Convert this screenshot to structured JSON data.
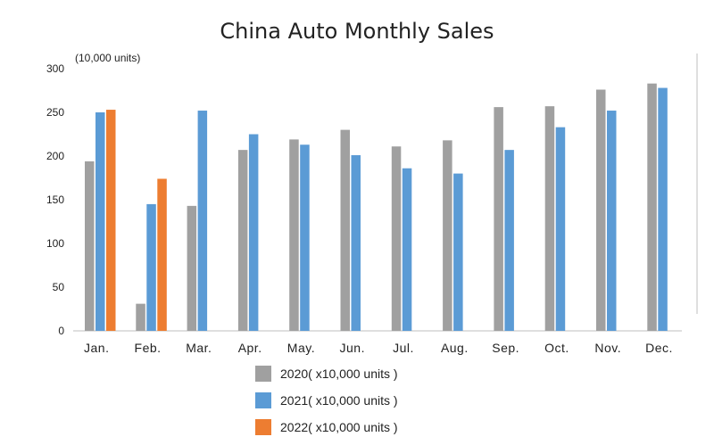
{
  "chart_data": {
    "type": "bar",
    "title": "China Auto Monthly Sales",
    "unit_label": "(10,000 units)",
    "categories": [
      "Jan.",
      "Feb.",
      "Mar.",
      "Apr.",
      "May.",
      "Jun.",
      "Jul.",
      "Aug.",
      "Sep.",
      "Oct.",
      "Nov.",
      "Dec."
    ],
    "ylim": [
      0,
      300
    ],
    "yticks": [
      0,
      50,
      100,
      150,
      200,
      250,
      300
    ],
    "grid": false,
    "legend_position": "bottom",
    "series": [
      {
        "name": "2020( x10,000 units )",
        "color": "#a0a0a0",
        "values": [
          194,
          31,
          143,
          207,
          219,
          230,
          211,
          218,
          256,
          257,
          276,
          283
        ]
      },
      {
        "name": "2021( x10,000 units )",
        "color": "#5b9bd5",
        "values": [
          250,
          145,
          252,
          225,
          213,
          201,
          186,
          180,
          207,
          233,
          252,
          278
        ]
      },
      {
        "name": "2022( x10,000 units )",
        "color": "#ed7d31",
        "values": [
          253,
          174,
          null,
          null,
          null,
          null,
          null,
          null,
          null,
          null,
          null,
          null
        ]
      }
    ]
  }
}
